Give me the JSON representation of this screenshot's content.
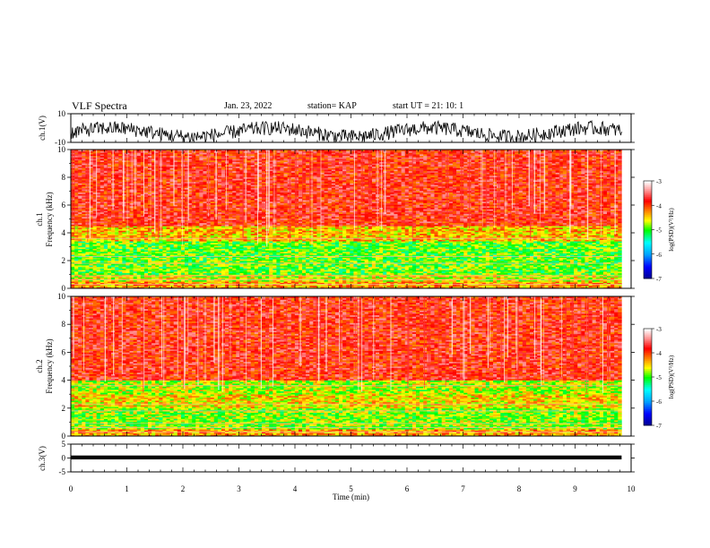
{
  "header": {
    "title": "VLF Spectra",
    "date": "Jan. 23, 2022",
    "station": "station= KAP",
    "start": "start UT =  21: 10: 1"
  },
  "colors": {
    "spectrogram_scale": [
      "#00008b",
      "#0000ff",
      "#00ffff",
      "#00ff00",
      "#ffff00",
      "#ff8000",
      "#ff0000",
      "#ffffff"
    ],
    "trace": "#000000"
  },
  "chart_data": [
    {
      "type": "line",
      "name": "ch1-waveform",
      "ylabel": "ch.1(V)",
      "ylim": [
        -10,
        10
      ],
      "yticks": [
        "10",
        "-10"
      ],
      "xlim": [
        0,
        10
      ],
      "description_values": {
        "mean": -3,
        "min": -10,
        "max": 8
      }
    },
    {
      "type": "heatmap",
      "name": "ch1-spectrogram",
      "ylabel": [
        "ch.1",
        "Frequency  (kHz)"
      ],
      "ylim": [
        0,
        10
      ],
      "yticks": [
        "0",
        "2",
        "4",
        "6",
        "8",
        "10"
      ],
      "xlim": [
        0,
        10
      ],
      "data_end_min": 9.83,
      "colorbar": {
        "label": "log(PSD)(V²/Hz)",
        "ticks": [
          "-3",
          "-4",
          "-5",
          "-6",
          "-7"
        ],
        "range": [
          -7,
          -3
        ]
      },
      "bands": [
        {
          "freq_khz": [
            0,
            0.5
          ],
          "logpsd": -4.3
        },
        {
          "freq_khz": [
            0.5,
            1.0
          ],
          "logpsd": -4.6
        },
        {
          "freq_khz": [
            1.0,
            2.0
          ],
          "logpsd": -4.9
        },
        {
          "freq_khz": [
            2.0,
            3.4
          ],
          "logpsd": -4.9
        },
        {
          "freq_khz": [
            3.4,
            4.5
          ],
          "logpsd": -4.4
        },
        {
          "freq_khz": [
            4.5,
            10
          ],
          "logpsd": -3.8
        }
      ]
    },
    {
      "type": "heatmap",
      "name": "ch2-spectrogram",
      "ylabel": [
        "ch.2",
        "Frequency  (kHz)"
      ],
      "ylim": [
        0,
        10
      ],
      "yticks": [
        "0",
        "2",
        "4",
        "6",
        "8",
        "10"
      ],
      "xlim": [
        0,
        10
      ],
      "data_end_min": 9.83,
      "colorbar": {
        "label": "log(PSD)(V²/Hz)",
        "ticks": [
          "-3",
          "-4",
          "-5",
          "-6",
          "-7"
        ],
        "range": [
          -7,
          -3
        ]
      },
      "bands": [
        {
          "freq_khz": [
            0,
            0.5
          ],
          "logpsd": -4.3
        },
        {
          "freq_khz": [
            0.5,
            2.0
          ],
          "logpsd": -4.8
        },
        {
          "freq_khz": [
            2.0,
            3.0
          ],
          "logpsd": -4.5
        },
        {
          "freq_khz": [
            3.0,
            4.0
          ],
          "logpsd": -4.7
        },
        {
          "freq_khz": [
            4.0,
            10
          ],
          "logpsd": -3.8
        }
      ]
    },
    {
      "type": "line",
      "name": "ch3-waveform",
      "ylabel": "ch.3(V)",
      "ylim": [
        -5,
        5
      ],
      "yticks": [
        "5",
        "0",
        "-5"
      ],
      "xlim": [
        0,
        10
      ],
      "description_values": {
        "mean": 0.2,
        "min": -0.5,
        "max": 0.9
      },
      "xlabel": "Time  (min)",
      "xticks": [
        "0",
        "1",
        "2",
        "3",
        "4",
        "5",
        "6",
        "7",
        "8",
        "9",
        "10"
      ]
    }
  ]
}
